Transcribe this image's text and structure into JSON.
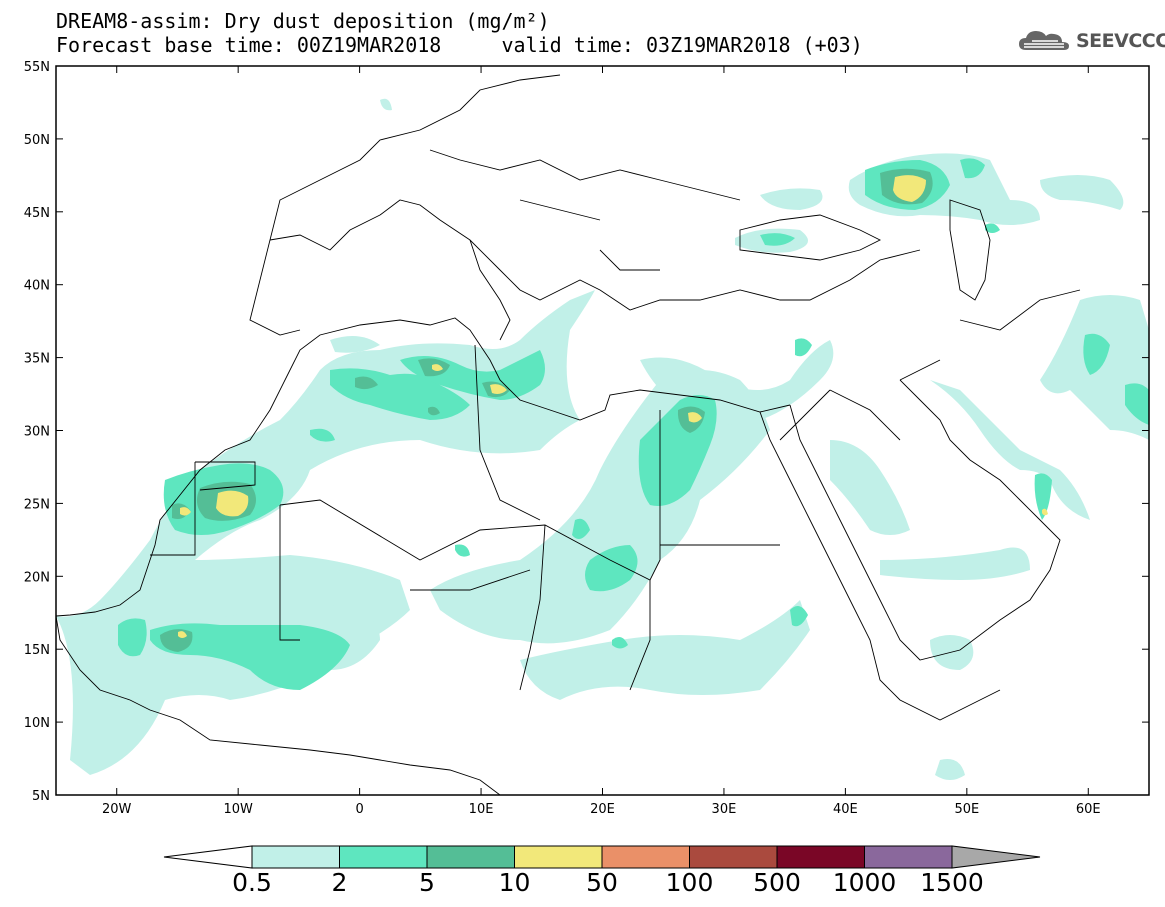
{
  "title": {
    "line1": "DREAM8-assim: Dry dust deposition (mg/m²)",
    "line2": "Forecast base time: 00Z19MAR2018     valid time: 03Z19MAR2018 (+03)"
  },
  "logo": {
    "text": "SEEVCCC",
    "icon": "cloud-icon"
  },
  "map": {
    "lon_range": [
      -25,
      65
    ],
    "lat_range": [
      5,
      55
    ],
    "lat_ticks": [
      "5N",
      "10N",
      "15N",
      "20N",
      "25N",
      "30N",
      "35N",
      "40N",
      "45N",
      "50N",
      "55N"
    ],
    "lon_ticks": [
      "20W",
      "10W",
      "0",
      "10E",
      "20E",
      "30E",
      "40E",
      "50E",
      "60E"
    ]
  },
  "colorbar": {
    "labels": [
      "0.5",
      "2",
      "5",
      "10",
      "50",
      "100",
      "500",
      "1000",
      "1500"
    ],
    "colors": [
      "#c1f0e8",
      "#5ee6bf",
      "#54be96",
      "#f2e87a",
      "#ea9068",
      "#aa4a3e",
      "#7a0626",
      "#8a689c"
    ],
    "under_color": "#ffffff",
    "over_color": "#a8a8a8"
  },
  "legend_colors": {
    "ocean_bg": "#ffffff",
    "coast": "#000000"
  }
}
